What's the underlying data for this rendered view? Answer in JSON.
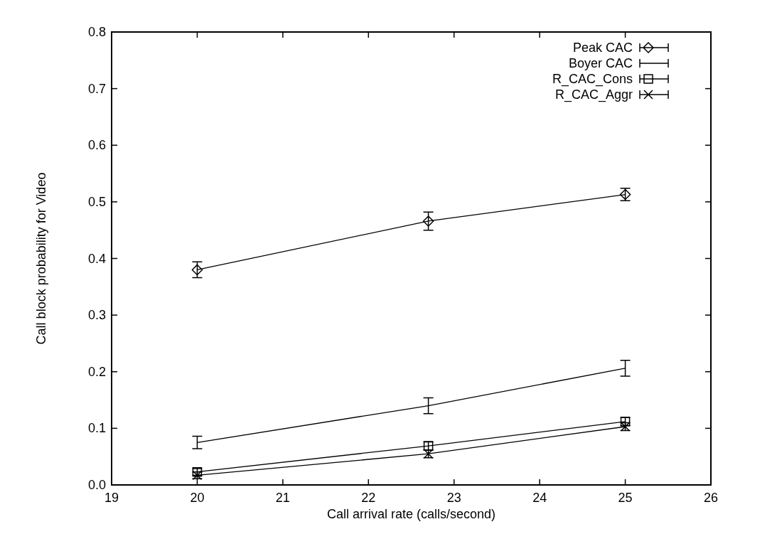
{
  "chart_data": {
    "type": "line",
    "xlabel": "Call arrival rate (calls/second)",
    "ylabel": "Call block probability for Video",
    "x": [
      20,
      22.7,
      25
    ],
    "xlim": [
      19,
      26
    ],
    "xticks": [
      19,
      20,
      21,
      22,
      23,
      24,
      25,
      26
    ],
    "ylim": [
      0,
      0.8
    ],
    "yticks": [
      {
        "value": 0,
        "label": "0.0"
      },
      0.1,
      0.2,
      0.3,
      0.4,
      0.5,
      0.6,
      0.7,
      0.8
    ],
    "grid": false,
    "legend": "top right",
    "line_style": "solid",
    "series": [
      {
        "name": "Peak CAC",
        "color": "#000000",
        "marker": "diamond",
        "values": [
          0.38,
          0.466,
          0.513
        ],
        "errors": [
          0.014,
          0.016,
          0.011
        ]
      },
      {
        "name": "Boyer CAC",
        "color": "#000000",
        "marker": "none",
        "values": [
          0.075,
          0.14,
          0.206
        ],
        "errors": [
          0.011,
          0.014,
          0.014
        ]
      },
      {
        "name": "R_CAC_Cons",
        "color": "#000000",
        "marker": "square",
        "values": [
          0.023,
          0.069,
          0.112
        ],
        "errors": [
          0.006,
          0.007,
          0.007
        ]
      },
      {
        "name": "R_CAC_Aggr",
        "color": "#000000",
        "marker": "cross",
        "values": [
          0.017,
          0.055,
          0.103
        ],
        "errors": [
          0.006,
          0.007,
          0.007
        ]
      }
    ]
  }
}
